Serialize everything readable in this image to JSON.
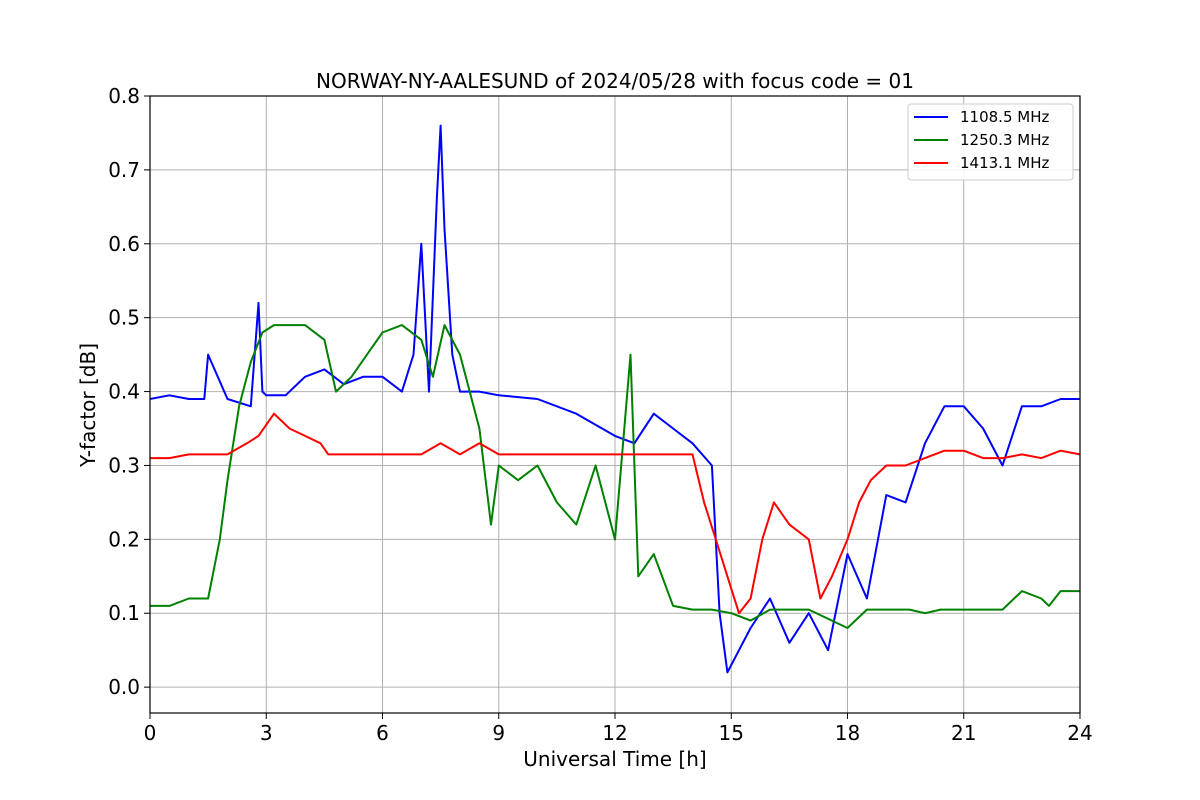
{
  "chart_data": {
    "type": "line",
    "title": "NORWAY-NY-AALESUND of 2024/05/28 with focus code = 01",
    "xlabel": "Universal Time [h]",
    "ylabel": "Y-factor [dB]",
    "xlim": [
      0,
      24
    ],
    "ylim": [
      -0.035,
      0.8
    ],
    "xticks": [
      0,
      3,
      6,
      9,
      12,
      15,
      18,
      21,
      24
    ],
    "yticks": [
      0.0,
      0.1,
      0.2,
      0.3,
      0.4,
      0.5,
      0.6,
      0.7,
      0.8
    ],
    "xtick_labels": [
      "0",
      "3",
      "6",
      "9",
      "12",
      "15",
      "18",
      "21",
      "24"
    ],
    "ytick_labels": [
      "0.0",
      "0.1",
      "0.2",
      "0.3",
      "0.4",
      "0.5",
      "0.6",
      "0.7",
      "0.8"
    ],
    "grid": true,
    "legend_position": "top-right",
    "series": [
      {
        "name": "1108.5 MHz",
        "color": "#0000ff",
        "x": [
          0,
          0.5,
          1.0,
          1.4,
          1.5,
          2.0,
          2.6,
          2.8,
          2.9,
          3.0,
          3.5,
          4.0,
          4.5,
          5.0,
          5.5,
          6.0,
          6.5,
          6.8,
          7.0,
          7.2,
          7.4,
          7.5,
          7.6,
          7.8,
          8.0,
          8.5,
          9.0,
          10.0,
          11.0,
          12.0,
          12.5,
          13.0,
          13.5,
          14.0,
          14.5,
          14.7,
          14.9,
          15.2,
          15.5,
          16.0,
          16.5,
          17.0,
          17.5,
          18.0,
          18.5,
          19.0,
          19.5,
          20.0,
          20.5,
          21.0,
          21.5,
          22.0,
          22.5,
          23.0,
          23.5,
          24.0
        ],
        "y": [
          0.39,
          0.395,
          0.39,
          0.39,
          0.45,
          0.39,
          0.38,
          0.52,
          0.4,
          0.395,
          0.395,
          0.42,
          0.43,
          0.41,
          0.42,
          0.42,
          0.4,
          0.45,
          0.6,
          0.4,
          0.66,
          0.76,
          0.62,
          0.45,
          0.4,
          0.4,
          0.395,
          0.39,
          0.37,
          0.34,
          0.33,
          0.37,
          0.35,
          0.33,
          0.3,
          0.1,
          0.02,
          0.05,
          0.08,
          0.12,
          0.06,
          0.1,
          0.05,
          0.18,
          0.12,
          0.26,
          0.25,
          0.33,
          0.38,
          0.38,
          0.35,
          0.3,
          0.38,
          0.38,
          0.39,
          0.39
        ]
      },
      {
        "name": "1250.3 MHz",
        "color": "#008000",
        "x": [
          0,
          0.5,
          1.0,
          1.5,
          1.8,
          2.0,
          2.3,
          2.6,
          2.9,
          3.2,
          3.5,
          4.0,
          4.5,
          4.8,
          5.2,
          5.6,
          6.0,
          6.5,
          7.0,
          7.3,
          7.6,
          8.0,
          8.5,
          8.8,
          9.0,
          9.5,
          10.0,
          10.5,
          11.0,
          11.5,
          12.0,
          12.4,
          12.6,
          13.0,
          13.5,
          14.0,
          14.5,
          15.0,
          15.5,
          16.0,
          17.0,
          18.0,
          18.5,
          19.0,
          19.6,
          20.0,
          20.4,
          21.0,
          21.5,
          22.0,
          22.5,
          23.0,
          23.2,
          23.5,
          24.0
        ],
        "y": [
          0.11,
          0.11,
          0.12,
          0.12,
          0.2,
          0.28,
          0.38,
          0.44,
          0.48,
          0.49,
          0.49,
          0.49,
          0.47,
          0.4,
          0.42,
          0.45,
          0.48,
          0.49,
          0.47,
          0.42,
          0.49,
          0.45,
          0.35,
          0.22,
          0.3,
          0.28,
          0.3,
          0.25,
          0.22,
          0.3,
          0.2,
          0.45,
          0.15,
          0.18,
          0.11,
          0.105,
          0.105,
          0.1,
          0.09,
          0.105,
          0.105,
          0.08,
          0.105,
          0.105,
          0.105,
          0.1,
          0.105,
          0.105,
          0.105,
          0.105,
          0.13,
          0.12,
          0.11,
          0.13,
          0.13
        ]
      },
      {
        "name": "1413.1 MHz",
        "color": "#ff0000",
        "x": [
          0,
          0.5,
          1.0,
          1.5,
          2.0,
          2.5,
          2.8,
          3.2,
          3.6,
          4.0,
          4.4,
          4.6,
          5.0,
          6.0,
          7.0,
          7.5,
          8.0,
          8.5,
          9.0,
          10.0,
          11.0,
          12.0,
          13.0,
          14.0,
          14.3,
          14.6,
          14.9,
          15.2,
          15.5,
          15.8,
          16.1,
          16.5,
          17.0,
          17.3,
          17.6,
          18.0,
          18.3,
          18.6,
          19.0,
          19.5,
          20.0,
          20.5,
          21.0,
          21.5,
          22.0,
          22.5,
          23.0,
          23.5,
          24.0
        ],
        "y": [
          0.31,
          0.31,
          0.315,
          0.315,
          0.315,
          0.33,
          0.34,
          0.37,
          0.35,
          0.34,
          0.33,
          0.315,
          0.315,
          0.315,
          0.315,
          0.33,
          0.315,
          0.33,
          0.315,
          0.315,
          0.315,
          0.315,
          0.315,
          0.315,
          0.25,
          0.2,
          0.15,
          0.1,
          0.12,
          0.2,
          0.25,
          0.22,
          0.2,
          0.12,
          0.15,
          0.2,
          0.25,
          0.28,
          0.3,
          0.3,
          0.31,
          0.32,
          0.32,
          0.31,
          0.31,
          0.315,
          0.31,
          0.32,
          0.315
        ]
      }
    ]
  }
}
